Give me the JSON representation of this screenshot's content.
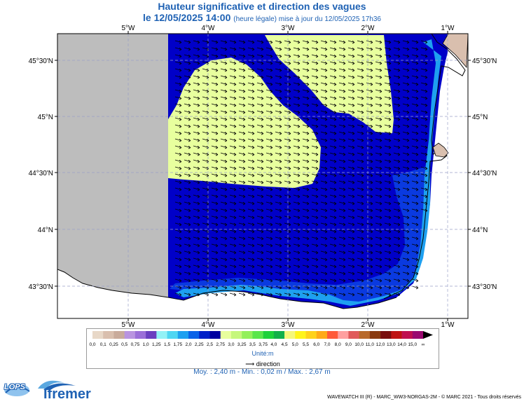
{
  "title": {
    "line1": "Hauteur significative et direction des vagues",
    "date": "le 12/05/2025 14:00",
    "note": "(heure légale) mise à jour du 12/05/2025 17h36"
  },
  "axes": {
    "lon_labels": [
      "5°W",
      "4°W",
      "3°W",
      "2°W",
      "1°W"
    ],
    "lat_labels": [
      "45°30'N",
      "45°N",
      "44°30'N",
      "44°N",
      "43°30'N"
    ]
  },
  "legend": {
    "ticks": [
      "0,0",
      "0,1",
      "0,25",
      "0,5",
      "0,75",
      "1,0",
      "1,25",
      "1,5",
      "1,75",
      "2,0",
      "2,25",
      "2,5",
      "2,75",
      "3,0",
      "3,25",
      "3,5",
      "3,75",
      "4,0",
      "4,5",
      "5,0",
      "5,5",
      "6,0",
      "7,0",
      "8,0",
      "9,0",
      "10,0",
      "11,0",
      "12,0",
      "13,0",
      "14,0",
      "15,0",
      "∞"
    ],
    "colors": [
      "#e8d8c8",
      "#d9bfae",
      "#c9ab9b",
      "#b994e0",
      "#9b6fd8",
      "#6a3fc0",
      "#93f2f6",
      "#4fd6f2",
      "#1ea0f0",
      "#0a62e8",
      "#0020c8",
      "#0000a0",
      "#e8ff9e",
      "#c6f77c",
      "#93f05a",
      "#5ae64a",
      "#1ed23a",
      "#12b04a",
      "#f5f77a",
      "#fff41a",
      "#ffd21a",
      "#ffaa18",
      "#ff5a3a",
      "#ffa0a0",
      "#e05a5a",
      "#b86a2a",
      "#8a3a10",
      "#7a0e0e",
      "#bf1313",
      "#c01050",
      "#9a0a70"
    ],
    "unit": "Unité:m",
    "direction_label": "direction"
  },
  "stats": "Moy. : 2,40 m   -   Min. : 0,02 m / Max. : 2,67 m",
  "footer": "WAVEWATCH III (R) - MARC_WW3-NORGAS-2M - © MARC 2021 - Tous droits réservés",
  "logos": {
    "lops": "LOPS",
    "ifremer": "Ifremer"
  },
  "colors": {
    "land": "#bdbdbd",
    "sea_deep": "#0000c8",
    "sea_band": "#0a3ae0",
    "coast_light": "#1ea0f0",
    "high_wave": "#e8ff9e",
    "accent_blue": "#1f62b4"
  }
}
